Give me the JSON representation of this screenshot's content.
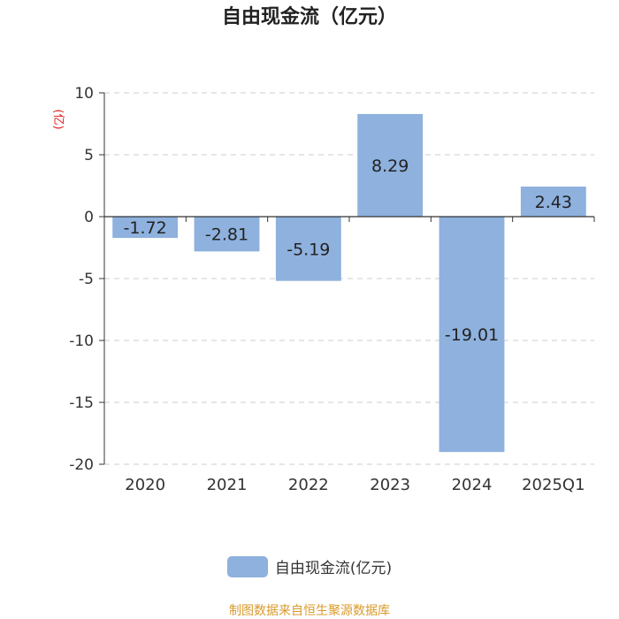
{
  "chart_data": {
    "type": "bar",
    "title": "自由现金流（亿元）",
    "ylabel": "(亿)",
    "categories": [
      "2020",
      "2021",
      "2022",
      "2023",
      "2024",
      "2025Q1"
    ],
    "series": [
      {
        "name": "自由现金流(亿元)",
        "values": [
          -1.72,
          -2.81,
          -5.19,
          8.29,
          -19.01,
          2.43
        ]
      }
    ],
    "value_labels": [
      "-1.72",
      "-2.81",
      "-5.19",
      "8.29",
      "-19.01",
      "2.43"
    ],
    "ylim": [
      -20,
      10
    ],
    "yticks": [
      10,
      5,
      0,
      -5,
      -10,
      -15,
      -20
    ],
    "ytick_labels": [
      "10",
      "5",
      "0",
      "-5",
      "-10",
      "-15",
      "-20"
    ],
    "grid": true,
    "legend_position": "bottom"
  },
  "colors": {
    "bar": "#8eb1de",
    "axis": "#333333",
    "grid": "#cccccc",
    "ylabel": "#e02020",
    "source_text": "#d99a2b"
  },
  "legend": {
    "label": "自由现金流(亿元)"
  },
  "source": "制图数据来自恒生聚源数据库"
}
